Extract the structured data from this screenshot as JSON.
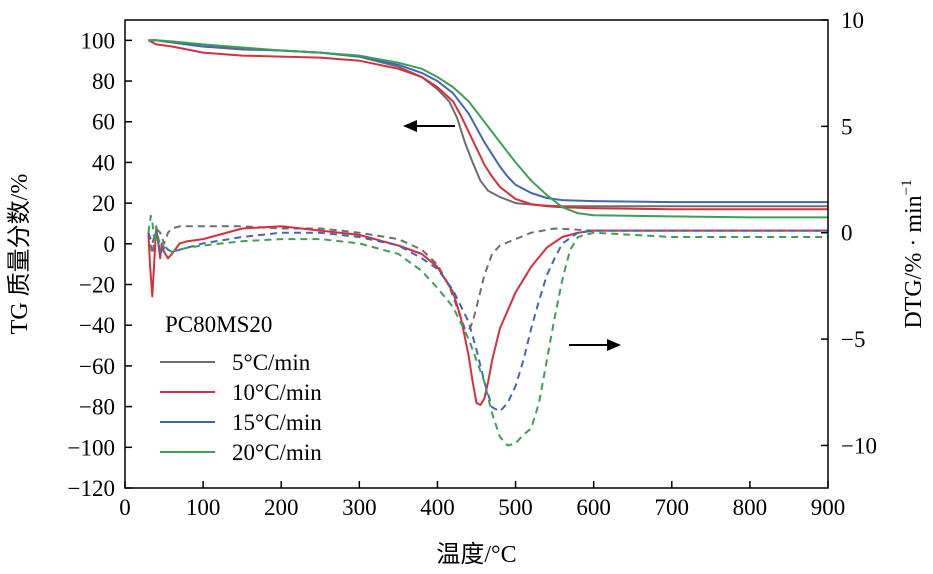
{
  "chart_data": {
    "type": "line",
    "title": "",
    "xlabel": "温度/°C",
    "ylabel_left": "TG 质量分数/%",
    "ylabel_right_prefix": "DTG/% · min",
    "ylabel_right_sup": "−1",
    "xlim": [
      0,
      900
    ],
    "ylim_left": [
      -120,
      110
    ],
    "ylim_right": [
      -12,
      10
    ],
    "x_ticks": [
      0,
      100,
      200,
      300,
      400,
      500,
      600,
      700,
      800,
      900
    ],
    "x_tick_labels": [
      "0",
      "100",
      "200",
      "300",
      "400",
      "500",
      "600",
      "700",
      "800",
      "900"
    ],
    "y_left_ticks": [
      100,
      80,
      60,
      40,
      20,
      0,
      -20,
      -40,
      -60,
      -80,
      -100,
      -120
    ],
    "y_left_tick_labels": [
      "100",
      "80",
      "60",
      "40",
      "20",
      "0",
      "−20",
      "−40",
      "−60",
      "−80",
      "−100",
      "−120"
    ],
    "y_right_ticks": [
      10,
      5,
      0,
      -5,
      -10
    ],
    "y_right_tick_labels": [
      "10",
      "5",
      "0",
      "−5",
      "−10"
    ],
    "legend_title": "PC80MS20",
    "legend_position": "lower-left",
    "annotations": [
      {
        "type": "arrow",
        "direction": "left",
        "points_to": "TG (left axis)",
        "at": [
          405,
          58
        ]
      },
      {
        "type": "arrow",
        "direction": "right",
        "points_to": "DTG (right axis)",
        "at": [
          570,
          -50
        ]
      }
    ],
    "series": [
      {
        "name": "5°C/min",
        "color": "#6e6e6e",
        "tg": {
          "axis": "left",
          "style": "solid",
          "x": [
            30,
            40,
            60,
            100,
            150,
            200,
            250,
            300,
            350,
            380,
            400,
            415,
            425,
            435,
            445,
            455,
            465,
            480,
            500,
            530,
            560,
            600,
            700,
            800,
            900
          ],
          "y": [
            100,
            100,
            99,
            97,
            95.5,
            95,
            94,
            92,
            87,
            82,
            76,
            70,
            62,
            50,
            40,
            31,
            26,
            23,
            20,
            19,
            18.5,
            18.5,
            18.5,
            18.5,
            18.5
          ]
        },
        "dtg": {
          "axis": "right",
          "style": "dashed",
          "x": [
            30,
            35,
            40,
            45,
            50,
            55,
            60,
            70,
            80,
            100,
            150,
            200,
            250,
            300,
            350,
            380,
            400,
            415,
            425,
            435,
            440,
            445,
            450,
            460,
            470,
            480,
            500,
            520,
            550,
            600,
            700,
            800,
            900
          ],
          "y": [
            0,
            -1,
            0.2,
            0,
            -0.5,
            0,
            0.2,
            0.3,
            0.3,
            0.3,
            0.3,
            0.2,
            0.2,
            0,
            -0.3,
            -0.8,
            -1.5,
            -2.5,
            -3.5,
            -4.5,
            -4.6,
            -4.2,
            -3.5,
            -2,
            -1,
            -0.6,
            -0.3,
            0,
            0.2,
            0.1,
            0.1,
            0.1,
            0.1
          ]
        }
      },
      {
        "name": "10°C/min",
        "color": "#d6303f",
        "tg": {
          "axis": "left",
          "style": "solid",
          "x": [
            30,
            40,
            60,
            100,
            150,
            200,
            250,
            300,
            350,
            380,
            400,
            420,
            430,
            440,
            450,
            460,
            470,
            480,
            500,
            520,
            540,
            560,
            600,
            700,
            800,
            900
          ],
          "y": [
            100,
            98,
            97,
            94,
            92.5,
            92,
            91.5,
            90,
            86,
            82,
            77,
            70,
            63,
            55,
            47,
            39,
            33,
            28,
            22,
            19.5,
            18.5,
            18,
            17.5,
            17,
            17,
            17
          ]
        },
        "dtg": {
          "axis": "right",
          "style": "solid",
          "x": [
            30,
            32,
            35,
            38,
            40,
            42,
            45,
            47,
            50,
            55,
            60,
            70,
            80,
            100,
            150,
            200,
            250,
            300,
            350,
            380,
            400,
            420,
            430,
            440,
            445,
            450,
            455,
            460,
            465,
            470,
            480,
            500,
            520,
            540,
            560,
            580,
            600,
            700,
            800,
            900
          ],
          "y": [
            0,
            -1.5,
            -3,
            -1,
            0.2,
            -0.3,
            -1.2,
            -0.5,
            -0.9,
            -1.2,
            -1,
            -0.5,
            -0.4,
            -0.3,
            0.2,
            0.3,
            0.1,
            -0.1,
            -0.6,
            -1,
            -1.6,
            -2.8,
            -4,
            -5.8,
            -7,
            -8,
            -8.1,
            -7.8,
            -7,
            -6,
            -4.5,
            -2.8,
            -1.6,
            -0.7,
            -0.2,
            0,
            0.1,
            0.1,
            0.1,
            0.1
          ]
        }
      },
      {
        "name": "15°C/min",
        "color": "#4466b0",
        "tg": {
          "axis": "left",
          "style": "solid",
          "x": [
            30,
            40,
            60,
            100,
            150,
            200,
            250,
            300,
            350,
            380,
            400,
            420,
            440,
            450,
            460,
            470,
            480,
            490,
            500,
            520,
            540,
            560,
            600,
            700,
            800,
            900
          ],
          "y": [
            100,
            100,
            99,
            97,
            96,
            95,
            94,
            92,
            88,
            84,
            80,
            74,
            64,
            57,
            50,
            44,
            38,
            33,
            29,
            25,
            22.5,
            21.5,
            21,
            20.5,
            20.5,
            20.5
          ]
        },
        "dtg": {
          "axis": "right",
          "style": "dashed",
          "x": [
            30,
            35,
            40,
            45,
            50,
            55,
            60,
            70,
            80,
            100,
            150,
            200,
            250,
            300,
            350,
            380,
            400,
            420,
            440,
            450,
            460,
            470,
            480,
            490,
            500,
            510,
            520,
            530,
            540,
            550,
            560,
            580,
            600,
            700,
            800,
            900
          ],
          "y": [
            0,
            -0.5,
            0.1,
            -1,
            -0.6,
            -0.8,
            -0.9,
            -0.8,
            -0.7,
            -0.5,
            -0.2,
            0,
            0,
            -0.2,
            -0.6,
            -1.2,
            -1.7,
            -2.7,
            -4.2,
            -5.5,
            -7,
            -8.2,
            -8.4,
            -8,
            -7.2,
            -6,
            -4.5,
            -3.2,
            -2,
            -1.2,
            -0.5,
            0,
            0.1,
            0.1,
            0.1,
            0.1
          ]
        }
      },
      {
        "name": "20°C/min",
        "color": "#3e9e58",
        "tg": {
          "axis": "left",
          "style": "solid",
          "x": [
            30,
            40,
            60,
            100,
            150,
            200,
            250,
            300,
            350,
            380,
            400,
            420,
            440,
            460,
            480,
            500,
            520,
            540,
            560,
            580,
            600,
            700,
            800,
            900
          ],
          "y": [
            100,
            100,
            99.5,
            98,
            96.5,
            95,
            94,
            92.5,
            89,
            86,
            82,
            77,
            70,
            60,
            50,
            40,
            31,
            24,
            18,
            15,
            14,
            13.5,
            13,
            13
          ]
        },
        "dtg": {
          "axis": "right",
          "style": "dashed",
          "x": [
            30,
            33,
            35,
            38,
            40,
            43,
            45,
            48,
            50,
            55,
            60,
            70,
            80,
            100,
            150,
            200,
            250,
            300,
            350,
            380,
            400,
            420,
            440,
            460,
            470,
            480,
            490,
            500,
            510,
            520,
            530,
            540,
            550,
            560,
            570,
            580,
            600,
            700,
            800,
            900
          ],
          "y": [
            0,
            0.8,
            0.5,
            -0.5,
            0.3,
            -0.3,
            -0.6,
            -0.5,
            -0.7,
            -0.8,
            -0.9,
            -0.8,
            -0.7,
            -0.6,
            -0.4,
            -0.3,
            -0.3,
            -0.5,
            -1,
            -1.8,
            -2.6,
            -3.5,
            -5,
            -7,
            -8.5,
            -9.6,
            -10,
            -9.9,
            -9.5,
            -9.2,
            -8,
            -6,
            -4,
            -2.2,
            -0.8,
            -0.2,
            0,
            -0.2,
            -0.2,
            -0.2
          ]
        }
      }
    ]
  }
}
